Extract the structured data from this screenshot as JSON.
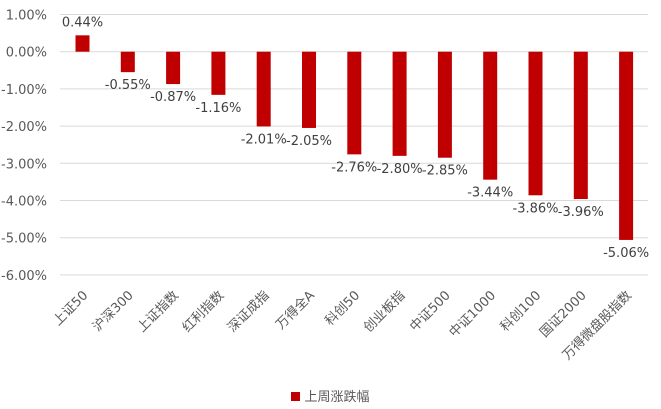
{
  "chart_data": {
    "type": "bar",
    "categories": [
      "上证50",
      "沪深300",
      "上证指数",
      "红利指数",
      "深证成指",
      "万得全A",
      "科创50",
      "创业板指",
      "中证500",
      "中证1000",
      "科创100",
      "国证2000",
      "万得微盘股指数"
    ],
    "series": [
      {
        "name": "上周涨跌幅",
        "values": [
          0.44,
          -0.55,
          -0.87,
          -1.16,
          -2.01,
          -2.05,
          -2.76,
          -2.8,
          -2.85,
          -3.44,
          -3.86,
          -3.96,
          -5.06
        ],
        "labels": [
          "0.44%",
          "-0.55%",
          "-0.87%",
          "-1.16%",
          "-2.01%",
          "-2.05%",
          "-2.76%",
          "-2.80%",
          "-2.85%",
          "-3.44%",
          "-3.86%",
          "-3.96%",
          "-5.06%"
        ],
        "color": "#C00000"
      }
    ],
    "ylim": [
      -6,
      1
    ],
    "yticks": [
      "1.00%",
      "0.00%",
      "-1.00%",
      "-2.00%",
      "-3.00%",
      "-4.00%",
      "-5.00%",
      "-6.00%"
    ],
    "ytick_values": [
      1,
      0,
      -1,
      -2,
      -3,
      -4,
      -5,
      -6
    ],
    "grid": true,
    "legend_position": "bottom"
  }
}
